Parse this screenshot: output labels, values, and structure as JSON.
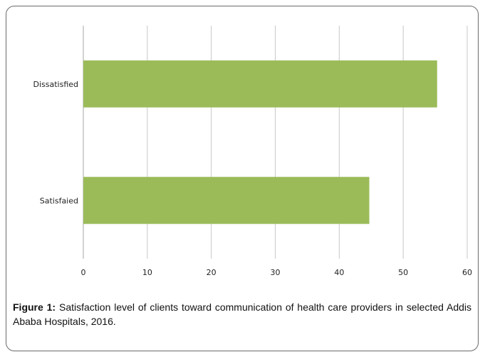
{
  "chart_data": {
    "type": "bar",
    "orientation": "horizontal",
    "categories": [
      "Dissatisfied",
      "Satisfaied"
    ],
    "values": [
      55.3,
      44.7
    ],
    "xlim": [
      0,
      60
    ],
    "xticks": [
      0,
      10,
      20,
      30,
      40,
      50,
      60
    ],
    "grid": "vertical",
    "legend": "none",
    "bar_color": "#9bbb59"
  },
  "caption": {
    "lead": "Figure 1:",
    "text": " Satisfaction level of clients toward communication of health care providers in selected Addis Ababa Hospitals, 2016."
  }
}
